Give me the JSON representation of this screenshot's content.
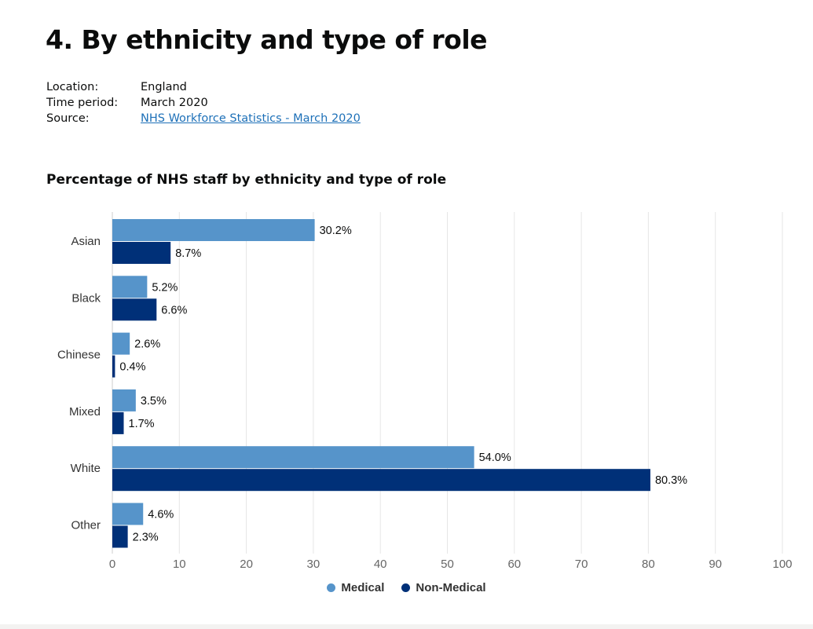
{
  "page": {
    "title": "4. By ethnicity and type of role"
  },
  "metadata": {
    "location_label": "Location:",
    "location_value": "England",
    "time_label": "Time period:",
    "time_value": "March 2020",
    "source_label": "Source:",
    "source_value": "NHS Workforce Statistics - March 2020"
  },
  "chart_data": {
    "type": "bar",
    "orientation": "horizontal",
    "title": "Percentage of NHS staff by ethnicity and type of role",
    "categories": [
      "Asian",
      "Black",
      "Chinese",
      "Mixed",
      "White",
      "Other"
    ],
    "series": [
      {
        "name": "Medical",
        "color": "#5694ca",
        "values": [
          30.2,
          5.2,
          2.6,
          3.5,
          54.0,
          4.6
        ],
        "labels": [
          "30.2%",
          "5.2%",
          "2.6%",
          "3.5%",
          "54.0%",
          "4.6%"
        ]
      },
      {
        "name": "Non-Medical",
        "color": "#003078",
        "values": [
          8.7,
          6.6,
          0.4,
          1.7,
          80.3,
          2.3
        ],
        "labels": [
          "8.7%",
          "6.6%",
          "0.4%",
          "1.7%",
          "80.3%",
          "2.3%"
        ]
      }
    ],
    "xlim": [
      0,
      100
    ],
    "xticks": [
      0,
      10,
      20,
      30,
      40,
      50,
      60,
      70,
      80,
      90,
      100
    ],
    "xlabel": "",
    "ylabel": "",
    "grid": true,
    "legend_position": "bottom"
  }
}
